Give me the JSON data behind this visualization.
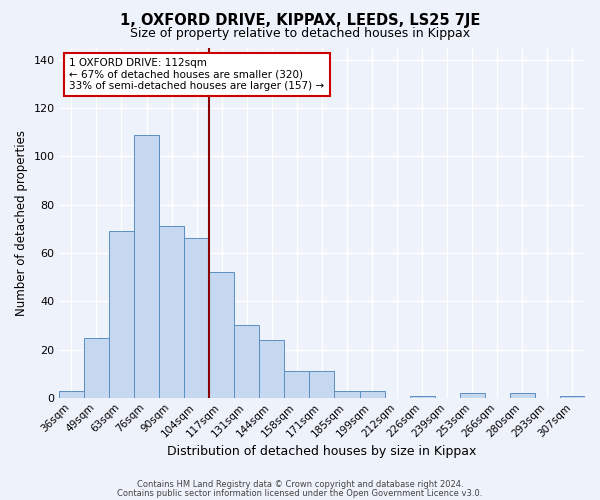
{
  "title": "1, OXFORD DRIVE, KIPPAX, LEEDS, LS25 7JE",
  "subtitle": "Size of property relative to detached houses in Kippax",
  "xlabel": "Distribution of detached houses by size in Kippax",
  "ylabel": "Number of detached properties",
  "bar_labels": [
    "36sqm",
    "49sqm",
    "63sqm",
    "76sqm",
    "90sqm",
    "104sqm",
    "117sqm",
    "131sqm",
    "144sqm",
    "158sqm",
    "171sqm",
    "185sqm",
    "199sqm",
    "212sqm",
    "226sqm",
    "239sqm",
    "253sqm",
    "266sqm",
    "280sqm",
    "293sqm",
    "307sqm"
  ],
  "bar_values": [
    3,
    25,
    69,
    109,
    71,
    66,
    52,
    30,
    24,
    11,
    11,
    3,
    3,
    0,
    1,
    0,
    2,
    0,
    2,
    0,
    1
  ],
  "bar_color": "#c5d8f0",
  "bar_edge_color": "#5a8fc2",
  "ylim": [
    0,
    145
  ],
  "yticks": [
    0,
    20,
    40,
    60,
    80,
    100,
    120,
    140
  ],
  "vline_color": "#8b0000",
  "annotation_title": "1 OXFORD DRIVE: 112sqm",
  "annotation_line1": "← 67% of detached houses are smaller (320)",
  "annotation_line2": "33% of semi-detached houses are larger (157) →",
  "annotation_box_color": "#ffffff",
  "annotation_box_edge": "#cc0000",
  "footnote1": "Contains HM Land Registry data © Crown copyright and database right 2024.",
  "footnote2": "Contains public sector information licensed under the Open Government Licence v3.0.",
  "bg_color": "#eef2fa",
  "grid_color": "#ffffff"
}
